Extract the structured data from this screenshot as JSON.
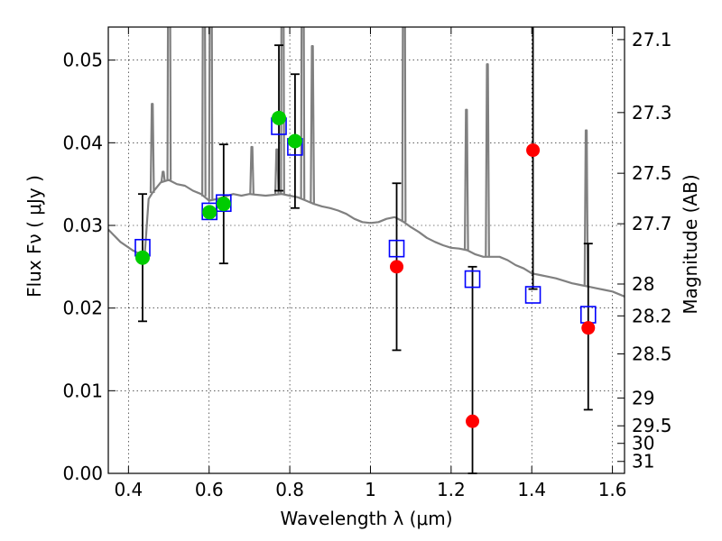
{
  "chart_data": {
    "type": "scatter",
    "xlabel": "Wavelength  λ (μm)",
    "ylabel": "Flux  Fν  ( μJy )",
    "y2label": "Magnitude (AB)",
    "xlim": [
      0.35,
      1.63
    ],
    "ylim": [
      0.0,
      0.054
    ],
    "grid": true,
    "x_ticks": [
      "0.4",
      "0.6",
      "0.8",
      "1",
      "1.2",
      "1.4",
      "1.6"
    ],
    "x_tick_values": [
      0.4,
      0.6,
      0.8,
      1.0,
      1.2,
      1.4,
      1.6
    ],
    "y_ticks": [
      "0.00",
      "0.01",
      "0.02",
      "0.03",
      "0.04",
      "0.05"
    ],
    "y_tick_values": [
      0.0,
      0.01,
      0.02,
      0.03,
      0.04,
      0.05
    ],
    "mag_ticks": [
      "27.1",
      "27.3",
      "27.5",
      "27.7",
      "28",
      "28.2",
      "28.5",
      "29",
      "29.5",
      "30",
      "31"
    ],
    "mag_tick_values": [
      27.1,
      27.3,
      27.5,
      27.7,
      28.0,
      28.2,
      28.5,
      29.0,
      29.5,
      30.0,
      31.0
    ],
    "colors": {
      "model": "#808080",
      "model_box": "#0000ff",
      "green": "#00cc00",
      "red": "#ff0000",
      "errorbar": "#000000"
    },
    "series": [
      {
        "kind": "model_spectrum",
        "x": [
          0.35,
          0.38,
          0.41,
          0.43,
          0.44,
          0.45,
          0.46,
          0.48,
          0.5,
          0.52,
          0.54,
          0.56,
          0.58,
          0.6,
          0.62,
          0.64,
          0.66,
          0.68,
          0.7,
          0.72,
          0.74,
          0.76,
          0.78,
          0.8,
          0.82,
          0.84,
          0.86,
          0.88,
          0.9,
          0.92,
          0.94,
          0.96,
          0.98,
          1.0,
          1.02,
          1.04,
          1.06,
          1.08,
          1.1,
          1.12,
          1.14,
          1.16,
          1.18,
          1.2,
          1.22,
          1.24,
          1.26,
          1.28,
          1.3,
          1.32,
          1.34,
          1.36,
          1.38,
          1.4,
          1.42,
          1.44,
          1.46,
          1.48,
          1.5,
          1.52,
          1.54,
          1.56,
          1.58,
          1.6,
          1.63
        ],
        "y": [
          0.0295,
          0.028,
          0.027,
          0.0265,
          0.0262,
          0.0332,
          0.034,
          0.0352,
          0.0355,
          0.035,
          0.0348,
          0.0342,
          0.0338,
          0.033,
          0.0332,
          0.0335,
          0.0338,
          0.0336,
          0.0338,
          0.0337,
          0.0336,
          0.0337,
          0.0338,
          0.0336,
          0.0334,
          0.033,
          0.0326,
          0.0323,
          0.0321,
          0.0318,
          0.0314,
          0.0308,
          0.0304,
          0.0303,
          0.0304,
          0.0308,
          0.031,
          0.0305,
          0.0298,
          0.0292,
          0.0285,
          0.028,
          0.0276,
          0.0273,
          0.0272,
          0.027,
          0.0265,
          0.0262,
          0.0262,
          0.0262,
          0.0258,
          0.0252,
          0.0248,
          0.0242,
          0.024,
          0.0238,
          0.0236,
          0.0233,
          0.023,
          0.0228,
          0.0226,
          0.0224,
          0.0222,
          0.022,
          0.0214
        ],
        "lines": [
          {
            "x": 0.459,
            "peak": 0.0447
          },
          {
            "x": 0.486,
            "peak": 0.0365
          },
          {
            "x": 0.5007,
            "peak": 0.08
          },
          {
            "x": 0.587,
            "peak": 0.08
          },
          {
            "x": 0.604,
            "peak": 0.08
          },
          {
            "x": 0.706,
            "peak": 0.0395
          },
          {
            "x": 0.768,
            "peak": 0.0392
          },
          {
            "x": 0.782,
            "peak": 0.08
          },
          {
            "x": 0.832,
            "peak": 0.08
          },
          {
            "x": 0.856,
            "peak": 0.0517
          },
          {
            "x": 1.083,
            "peak": 0.08
          },
          {
            "x": 1.238,
            "peak": 0.044
          },
          {
            "x": 1.29,
            "peak": 0.0495
          },
          {
            "x": 1.535,
            "peak": 0.0415
          }
        ]
      },
      {
        "kind": "model_photometry",
        "marker": "open-square",
        "x": [
          0.435,
          0.601,
          0.636,
          0.773,
          0.813,
          1.065,
          1.253,
          1.403,
          1.54
        ],
        "y": [
          0.0273,
          0.0317,
          0.0327,
          0.042,
          0.0395,
          0.0272,
          0.0235,
          0.0216,
          0.0192
        ]
      },
      {
        "kind": "observed_detection",
        "marker": "filled-circle",
        "color": "green",
        "x": [
          0.435,
          0.601,
          0.636,
          0.773,
          0.813
        ],
        "y": [
          0.0261,
          0.0316,
          0.0326,
          0.043,
          0.0402
        ],
        "err": [
          0.0077,
          null,
          0.0072,
          0.0088,
          0.0081
        ]
      },
      {
        "kind": "observed_other",
        "marker": "filled-circle",
        "color": "red",
        "x": [
          1.065,
          1.253,
          1.403,
          1.54
        ],
        "y": [
          0.025,
          0.0063,
          0.0391,
          0.0176
        ],
        "err_low": [
          0.0101,
          0.0063,
          0.0168,
          0.0099
        ],
        "err_high": [
          0.0101,
          0.0187,
          0.0149,
          0.0102
        ]
      }
    ]
  }
}
